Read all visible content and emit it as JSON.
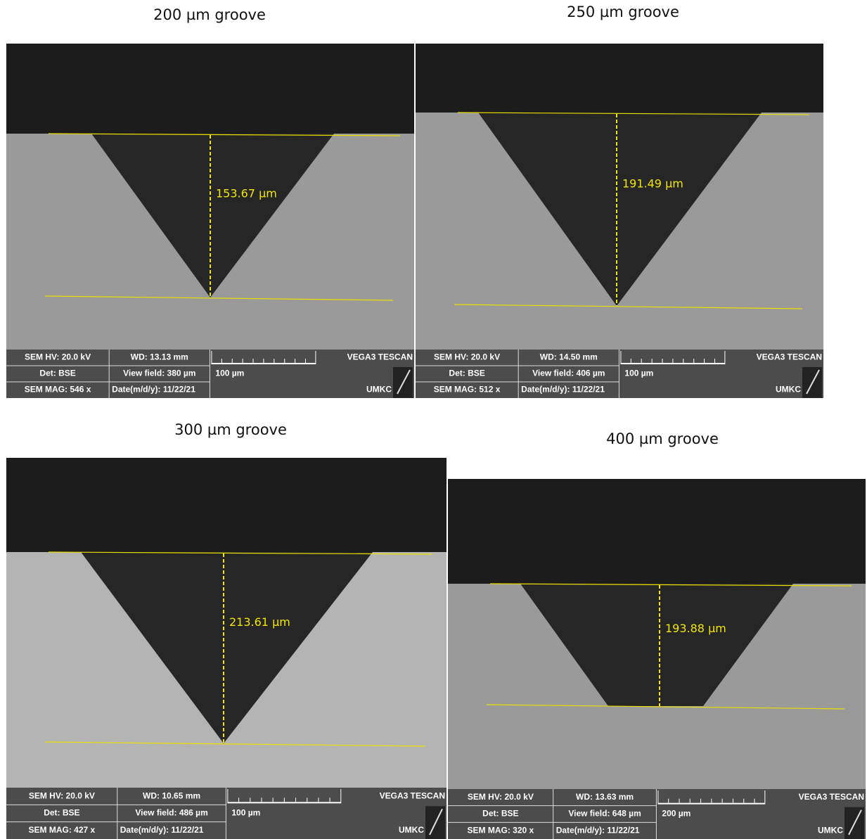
{
  "panels": [
    {
      "title": "200 µm groove",
      "measurement": "153.67 µm",
      "info": {
        "hv": "SEM HV: 20.0 kV",
        "wd": "WD: 13.13 mm",
        "brand": "VEGA3 TESCAN",
        "det": "Det: BSE",
        "view_field": "View field: 380 µm",
        "scale": "100 µm",
        "mag": "SEM MAG: 546 x",
        "date": "Date(m/d/y): 11/22/21",
        "lab": "UMKC"
      }
    },
    {
      "title": "250 µm groove",
      "measurement": "191.49 µm",
      "info": {
        "hv": "SEM HV: 20.0 kV",
        "wd": "WD: 14.50 mm",
        "brand": "VEGA3 TESCAN",
        "det": "Det: BSE",
        "view_field": "View field: 406 µm",
        "scale": "100 µm",
        "mag": "SEM MAG: 512 x",
        "date": "Date(m/d/y): 11/22/21",
        "lab": "UMKC"
      }
    },
    {
      "title": "300 µm groove",
      "measurement": "213.61 µm",
      "info": {
        "hv": "SEM HV: 20.0 kV",
        "wd": "WD: 10.65 mm",
        "brand": "VEGA3 TESCAN",
        "det": "Det: BSE",
        "view_field": "View field: 486 µm",
        "scale": "100 µm",
        "mag": "SEM MAG: 427 x",
        "date": "Date(m/d/y): 11/22/21",
        "lab": "UMKC"
      }
    },
    {
      "title": "400 µm groove",
      "measurement": "193.88 µm",
      "info": {
        "hv": "SEM HV: 20.0 kV",
        "wd": "WD: 13.63 mm",
        "brand": "VEGA3 TESCAN",
        "det": "Det: BSE",
        "view_field": "View field: 648 µm",
        "scale": "200 µm",
        "mag": "SEM MAG: 320 x",
        "date": "Date(m/d/y): 11/22/21",
        "lab": "UMKC"
      }
    }
  ]
}
